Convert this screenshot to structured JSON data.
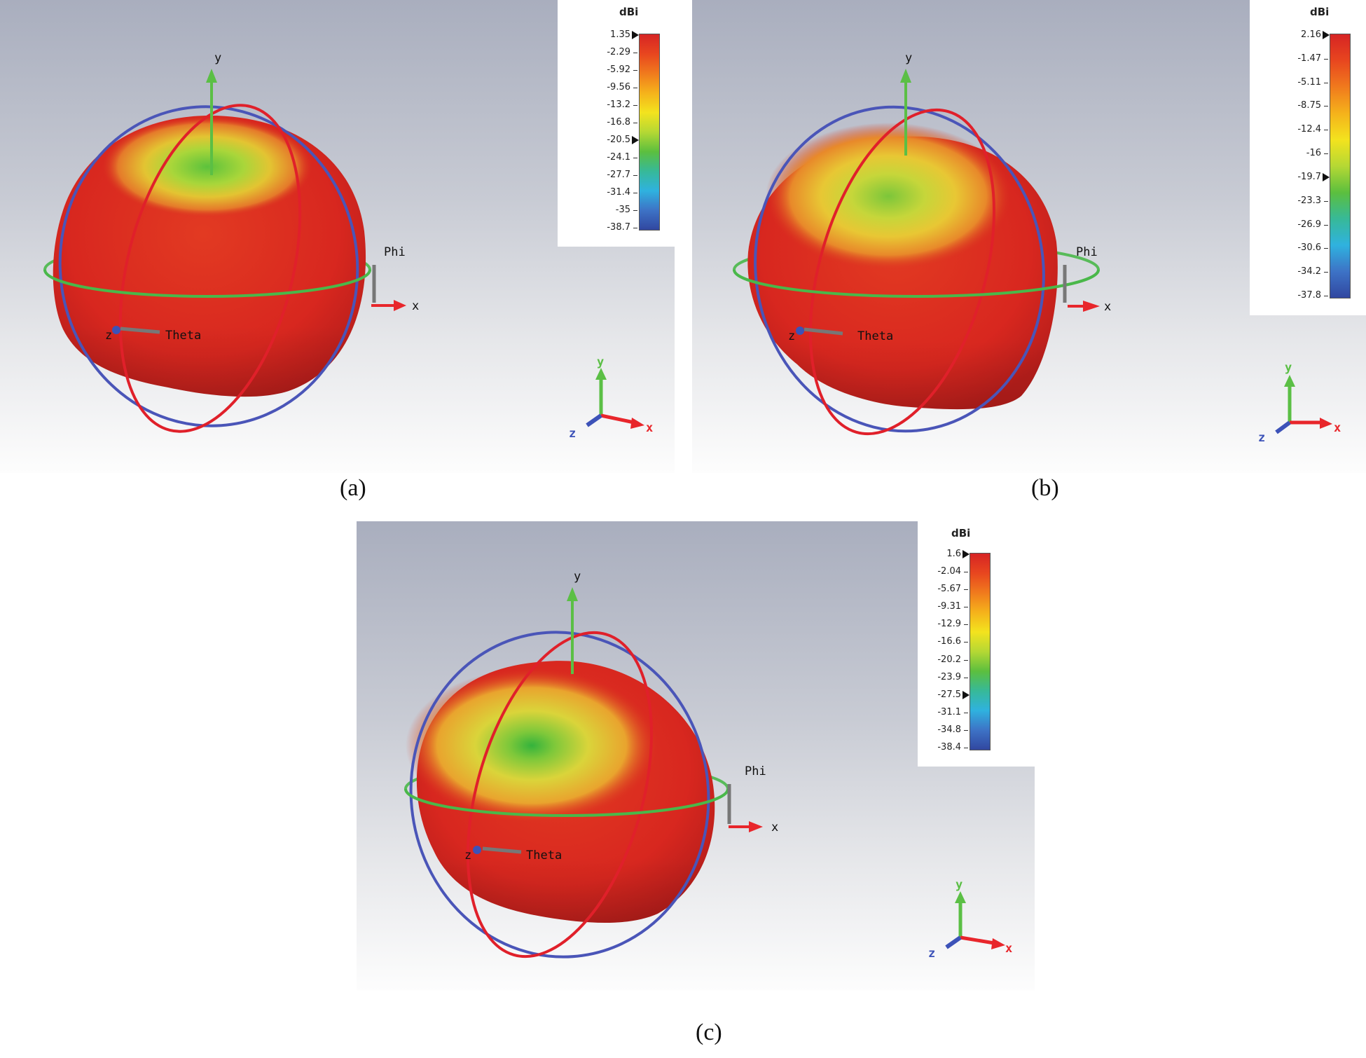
{
  "panels": [
    {
      "id": "a",
      "caption": "(a)",
      "legend": {
        "unit": "dBi",
        "ticks": [
          "1.35",
          "-2.29",
          "-5.92",
          "-9.56",
          "-13.2",
          "-16.8",
          "-20.5",
          "-24.1",
          "-27.7",
          "-31.4",
          "-35",
          "-38.7"
        ],
        "markers": [
          "1.35",
          "-20.5"
        ]
      },
      "axis_labels": {
        "x": "x",
        "y": "y",
        "z": "z",
        "phi": "Phi",
        "theta": "Theta"
      },
      "triad_labels": {
        "x": "x",
        "y": "y",
        "z": "z"
      }
    },
    {
      "id": "b",
      "caption": "(b)",
      "legend": {
        "unit": "dBi",
        "ticks": [
          "2.16",
          "-1.47",
          "-5.11",
          "-8.75",
          "-12.4",
          "-16",
          "-19.7",
          "-23.3",
          "-26.9",
          "-30.6",
          "-34.2",
          "-37.8"
        ],
        "markers": [
          "2.16",
          "-19.7"
        ]
      },
      "axis_labels": {
        "x": "x",
        "y": "y",
        "z": "z",
        "phi": "Phi",
        "theta": "Theta"
      },
      "triad_labels": {
        "x": "x",
        "y": "y",
        "z": "z"
      }
    },
    {
      "id": "c",
      "caption": "(c)",
      "legend": {
        "unit": "dBi",
        "ticks": [
          "1.6",
          "-2.04",
          "-5.67",
          "-9.31",
          "-12.9",
          "-16.6",
          "-20.2",
          "-23.9",
          "-27.5",
          "-31.1",
          "-34.8",
          "-38.4"
        ],
        "markers": [
          "1.6",
          "-27.5"
        ]
      },
      "axis_labels": {
        "x": "x",
        "y": "y",
        "z": "z",
        "phi": "Phi",
        "theta": "Theta"
      },
      "triad_labels": {
        "x": "x",
        "y": "y",
        "z": "z"
      }
    }
  ],
  "colors": {
    "pattern_red": "#d8271f",
    "pattern_green": "#7cc43a",
    "ring_blue": "#4a55b8",
    "ring_red": "#e0202a",
    "ring_green": "#4ab84a",
    "axis_green": "#5bbf45",
    "axis_red": "#e8262b",
    "axis_blue": "#3c52b8"
  }
}
